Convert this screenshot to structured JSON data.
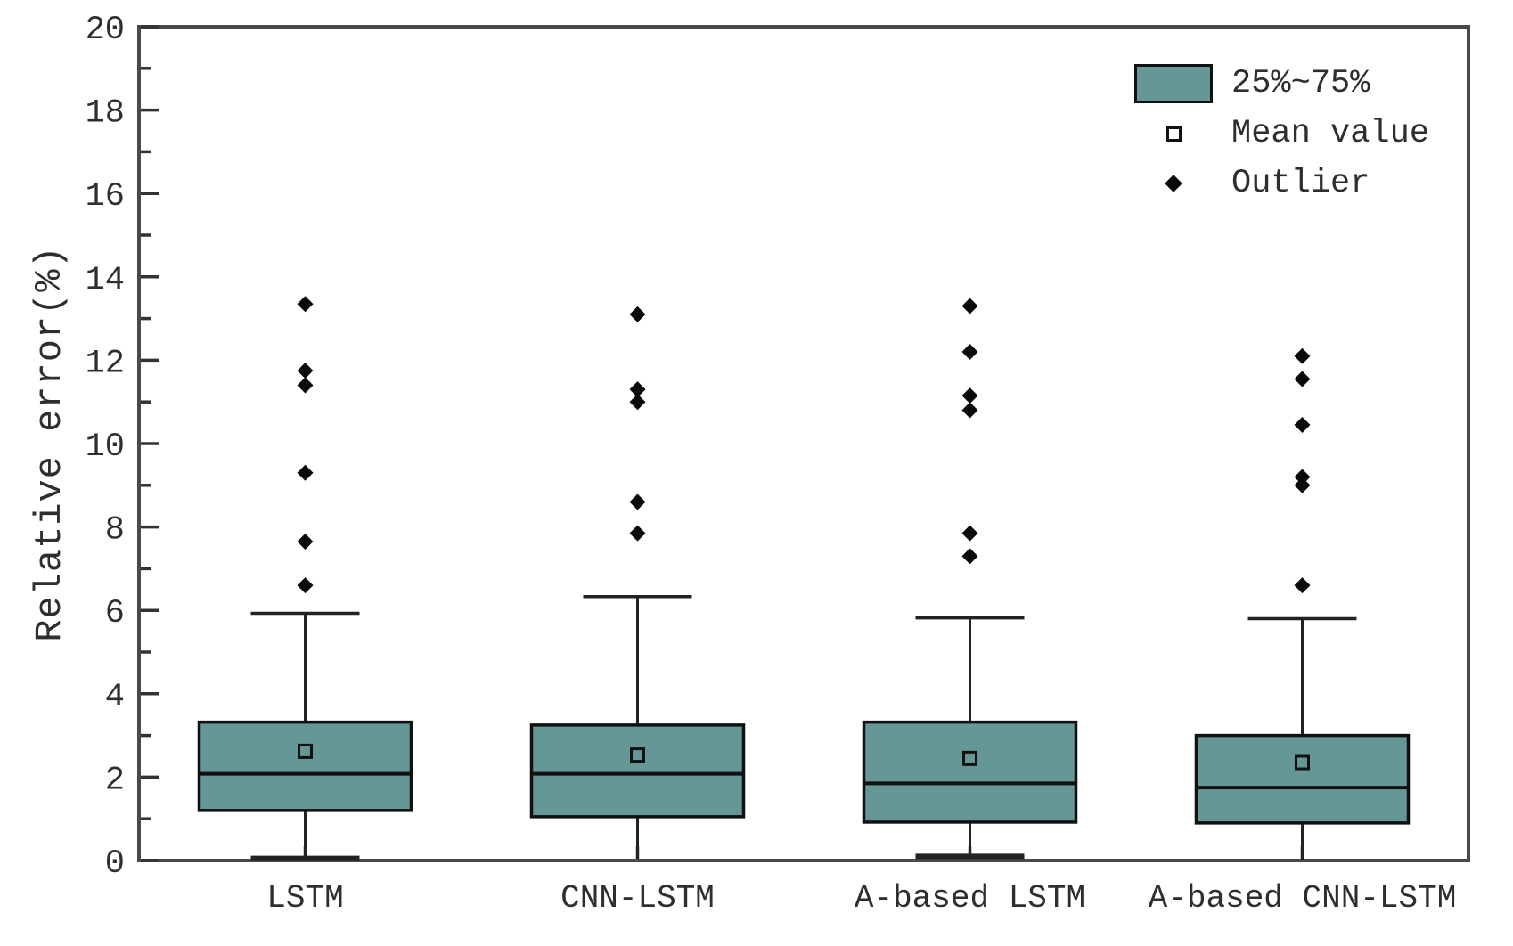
{
  "chart_data": {
    "type": "boxplot",
    "title": "",
    "xlabel": "",
    "ylabel": "Relative error(%)",
    "ylim": [
      0,
      20
    ],
    "ytick_major_step": 2,
    "ytick_minor_step": 1,
    "grid": false,
    "legend_position": "top-right",
    "categories": [
      "LSTM",
      "CNN-LSTM",
      "A-based LSTM",
      "A-based CNN-LSTM"
    ],
    "series": [
      {
        "name": "LSTM",
        "whisker_low": 0.05,
        "q1": 1.2,
        "median": 2.08,
        "mean": 2.62,
        "q3": 3.32,
        "whisker_high": 5.93,
        "low_cap": true,
        "outliers": [
          6.6,
          7.65,
          9.3,
          11.4,
          11.75,
          13.35
        ]
      },
      {
        "name": "CNN-LSTM",
        "whisker_low": 0.05,
        "q1": 1.05,
        "median": 2.08,
        "mean": 2.53,
        "q3": 3.25,
        "whisker_high": 6.33,
        "low_cap": false,
        "outliers": [
          7.85,
          8.6,
          11.0,
          11.3,
          13.1
        ]
      },
      {
        "name": "A-based LSTM",
        "whisker_low": 0.1,
        "q1": 0.92,
        "median": 1.85,
        "mean": 2.45,
        "q3": 3.32,
        "whisker_high": 5.82,
        "low_cap": true,
        "outliers": [
          7.3,
          7.85,
          10.8,
          11.15,
          12.2,
          13.3
        ]
      },
      {
        "name": "A-based CNN-LSTM",
        "whisker_low": 0.02,
        "q1": 0.9,
        "median": 1.75,
        "mean": 2.35,
        "q3": 3.0,
        "whisker_high": 5.8,
        "low_cap": false,
        "outliers": [
          6.6,
          9.0,
          9.2,
          10.45,
          11.55,
          12.1
        ]
      }
    ],
    "legend": [
      {
        "symbol": "iqr-box",
        "label": "25%~75%"
      },
      {
        "symbol": "open-square",
        "label": "Mean value"
      },
      {
        "symbol": "diamond",
        "label": "Outlier"
      }
    ],
    "colors": {
      "box_fill": "#649795",
      "box_border": "#111111",
      "median_line": "#111111",
      "whisker": "#222222",
      "outlier": "#0a0a0a",
      "frame": "#4a4a4a",
      "tick": "#333333",
      "text": "#2e2e2e"
    }
  }
}
